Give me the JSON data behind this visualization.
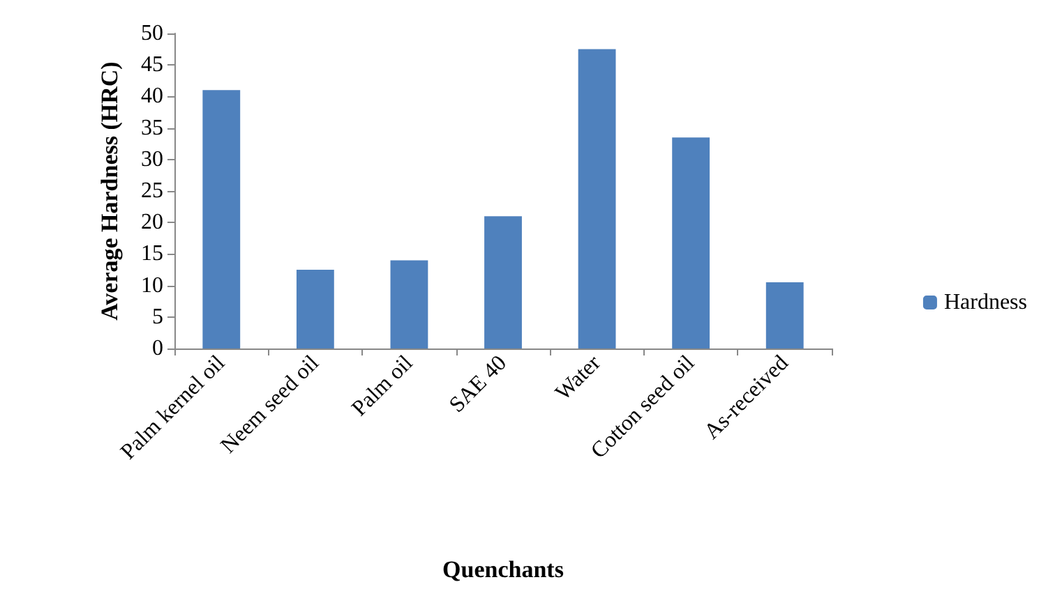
{
  "chart_data": {
    "type": "bar",
    "xlabel": "Quenchants",
    "ylabel": "Average Hardness (HRC)",
    "categories": [
      "Palm kernel oil",
      "Neem seed oil",
      "Palm oil",
      "SAE 40",
      "Water",
      "Cotton seed oil",
      "As-received"
    ],
    "series": [
      {
        "name": "Hardness",
        "color": "#4f81bd",
        "values": [
          41,
          12.5,
          14,
          21,
          47.5,
          33.5,
          10.5
        ]
      }
    ],
    "ylim": [
      0,
      50
    ],
    "yticks": [
      0,
      5,
      10,
      15,
      20,
      25,
      30,
      35,
      40,
      45,
      50
    ],
    "grid": false,
    "legend": "right"
  }
}
